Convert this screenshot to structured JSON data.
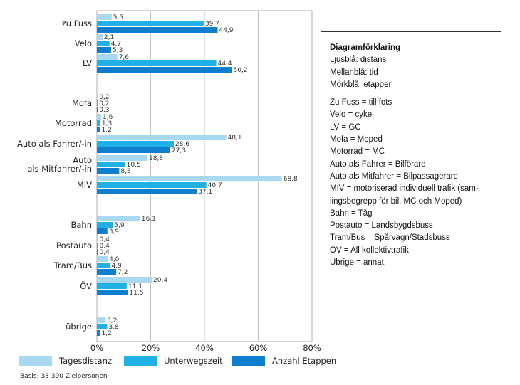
{
  "chart_data": {
    "type": "bar",
    "orientation": "horizontal",
    "categories": [
      "zu Fuss",
      "Velo",
      "LV",
      "Mofa",
      "Motorrad",
      "Auto als Fahrer/-in",
      "Auto als Mitfahrer/-in",
      "MIV",
      "Bahn",
      "Postauto",
      "Tram/Bus",
      "ÖV",
      "übrige"
    ],
    "category_label_lines": [
      [
        "zu Fuss"
      ],
      [
        "Velo"
      ],
      [
        "LV"
      ],
      [
        "Mofa"
      ],
      [
        "Motorrad"
      ],
      [
        "Auto als Fahrer/-in"
      ],
      [
        "Auto",
        "als Mitfahrer/-in"
      ],
      [
        "MIV"
      ],
      [
        "Bahn"
      ],
      [
        "Postauto"
      ],
      [
        "Tram/Bus"
      ],
      [
        "ÖV"
      ],
      [
        "übrige"
      ]
    ],
    "series": [
      {
        "name": "Tagesdistanz",
        "color": "#a9d8f2",
        "values": [
          5.5,
          2.1,
          7.6,
          0.2,
          1.6,
          48.1,
          18.8,
          68.8,
          16.1,
          0.4,
          4.0,
          20.4,
          3.2
        ],
        "labels": [
          "5,5",
          "2,1",
          "7,6",
          "0,2",
          "1,6",
          "48,1",
          "18,8",
          "68,8",
          "16,1",
          "0,4",
          "4,0",
          "20,4",
          "3,2"
        ]
      },
      {
        "name": "Unterwegszeit",
        "color": "#1fb1e6",
        "values": [
          39.7,
          4.7,
          44.4,
          0.2,
          1.3,
          28.6,
          10.5,
          40.7,
          5.9,
          0.4,
          4.9,
          11.1,
          3.8
        ],
        "labels": [
          "39,7",
          "4,7",
          "44,4",
          "0,2",
          "1,3",
          "28,6",
          "10,5",
          "40,7",
          "5,9",
          "0,4",
          "4,9",
          "11,1",
          "3,8"
        ]
      },
      {
        "name": "Anzahl Etappen",
        "color": "#0e7fcf",
        "values": [
          44.9,
          5.3,
          50.2,
          0.3,
          1.2,
          27.3,
          8.3,
          37.1,
          3.9,
          0.4,
          7.2,
          11.5,
          1.2
        ],
        "labels": [
          "44,9",
          "5,3",
          "50,2",
          "0,3",
          "1,2",
          "27,3",
          "8,3",
          "37,1",
          "3,9",
          "0,4",
          "7,2",
          "11,5",
          "1,2"
        ]
      }
    ],
    "xlim": [
      0,
      80
    ],
    "xticks": [
      0,
      20,
      40,
      60,
      80
    ],
    "xtick_labels": [
      "0%",
      "20%",
      "40%",
      "60%",
      "80%"
    ],
    "grid": "vertical",
    "legend_position": "bottom",
    "title": "",
    "xlabel": "",
    "ylabel": ""
  },
  "basis_note": "Basis: 33 390 Zielpersonen",
  "explanation": {
    "title": "Diagramförklaring",
    "colors": [
      "Ljusblå: distans",
      "Mellanblå: tid",
      "Mörkblå: etapper"
    ],
    "terms": [
      "Zu Fuss = till fots",
      "Velo = cykel",
      "LV = GC",
      "Mofa = Moped",
      "Motorrad = MC",
      "Auto als Fahrer = Bilförare",
      "Auto als Mitfahrer = Bilpassagerare",
      "MIV = motoriserad individuell trafik (sam-",
      "lingsbegrepp för bil, MC och Moped)",
      "Bahn = Tåg",
      "Postauto = Landsbygdsbuss",
      "Tram/Bus = Spårvagn/Stadsbuss",
      "ÖV = All kollektivtrafik",
      "Übrige = annat."
    ]
  }
}
